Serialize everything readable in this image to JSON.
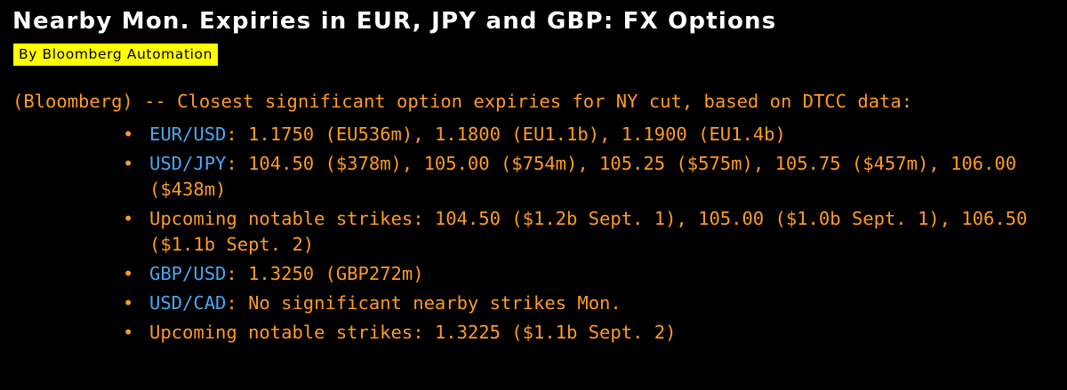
{
  "headline": "Nearby Mon. Expiries in EUR, JPY and GBP: FX Options",
  "byline": "By Bloomberg Automation",
  "lede": "(Bloomberg) -- Closest significant option expiries for NY cut, based on DTCC data:",
  "bullets": [
    {
      "ticker": "EUR/USD",
      "text": ": 1.1750 (EU536m), 1.1800 (EU1.1b), 1.1900 (EU1.4b)"
    },
    {
      "ticker": "USD/JPY",
      "text": ": 104.50 ($378m), 105.00 ($754m), 105.25 ($575m), 105.75 ($457m), 106.00 ($438m)"
    },
    {
      "ticker": "",
      "text": "Upcoming notable strikes: 104.50 ($1.2b Sept. 1), 105.00 ($1.0b Sept. 1), 106.50 ($1.1b Sept. 2)"
    },
    {
      "ticker": "GBP/USD",
      "text": ": 1.3250 (GBP272m)"
    },
    {
      "ticker": "USD/CAD",
      "text": ": No significant nearby strikes Mon."
    },
    {
      "ticker": "",
      "text": "Upcoming notable strikes: 1.3225 ($1.1b Sept. 2)"
    }
  ],
  "bullet_glyph": "•",
  "colors": {
    "background": "#000000",
    "headline": "#ffffff",
    "byline_bg": "#ffff00",
    "body_text": "#ff9b21",
    "ticker_link": "#4aa8f0"
  }
}
